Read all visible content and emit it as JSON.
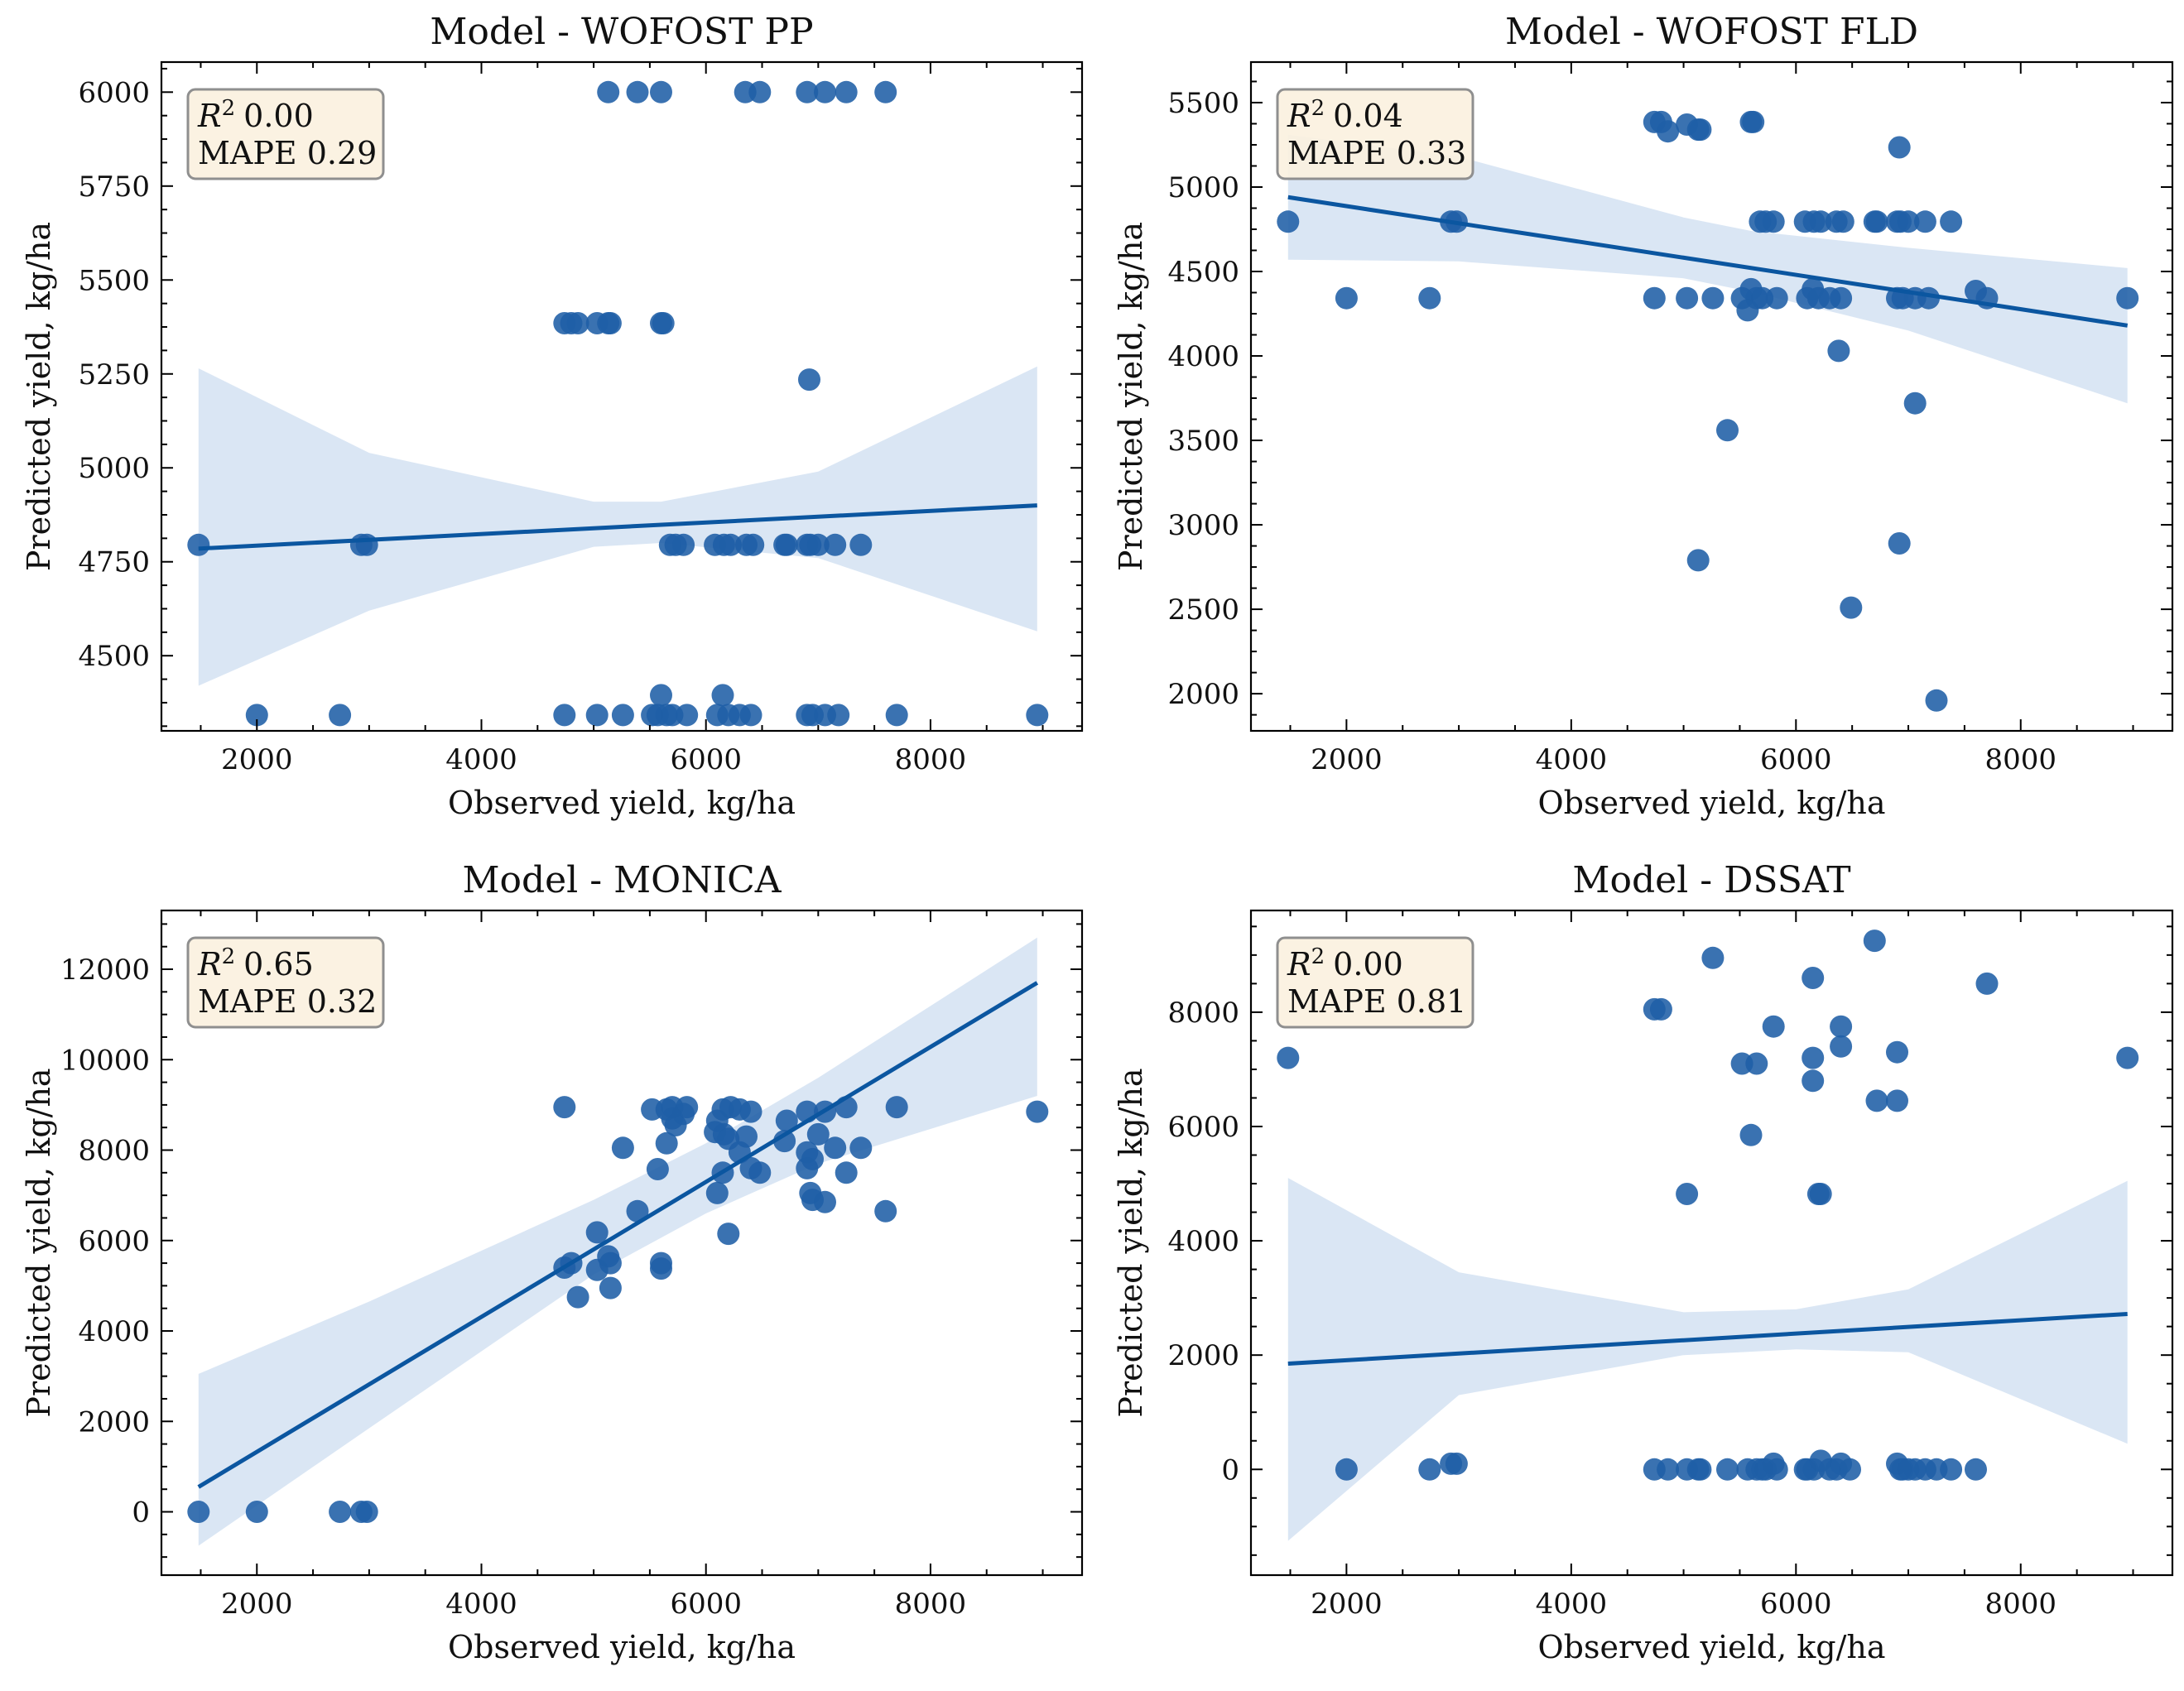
{
  "colors": {
    "point": "#1f5fa6",
    "line": "#0b56a0",
    "band": "#c6d9ee",
    "box_fill": "#fbf1df",
    "box_edge": "#8f8f8f"
  },
  "chart_data": [
    {
      "type": "scatter",
      "title": "Model - WOFOST PP",
      "xlabel": "Observed yield, kg/ha",
      "ylabel": "Predicted yield, kg/ha",
      "stats": {
        "r2_symbol": "R",
        "r2_exp": "2",
        "r2_value": "0.00",
        "mape": "MAPE 0.29"
      },
      "xlim": [
        1150,
        9350
      ],
      "ylim": [
        4300,
        6080
      ],
      "xticks": [
        2000,
        4000,
        6000,
        8000
      ],
      "xtick_labels": [
        "2000",
        "4000",
        "6000",
        "8000"
      ],
      "yticks": [
        4500,
        4750,
        5000,
        5250,
        5500,
        5750,
        6000
      ],
      "ytick_labels": [
        "4500",
        "4750",
        "5000",
        "5250",
        "5500",
        "5750",
        "6000"
      ],
      "fit": {
        "x": [
          1480,
          8950
        ],
        "y": [
          4785,
          4900
        ]
      },
      "band": {
        "x": [
          1480,
          3000,
          5000,
          5600,
          7000,
          8950
        ],
        "lower": [
          4420,
          4620,
          4790,
          4800,
          4760,
          4565
        ],
        "upper": [
          5265,
          5040,
          4910,
          4910,
          4990,
          5270
        ]
      },
      "points": [
        [
          1480,
          4795
        ],
        [
          2000,
          4342
        ],
        [
          2740,
          4342
        ],
        [
          2930,
          4795
        ],
        [
          2980,
          4795
        ],
        [
          4740,
          5385
        ],
        [
          4800,
          5385
        ],
        [
          4860,
          5385
        ],
        [
          5030,
          5385
        ],
        [
          5130,
          5385
        ],
        [
          5150,
          5385
        ],
        [
          5600,
          5385
        ],
        [
          5620,
          5385
        ],
        [
          4740,
          4342
        ],
        [
          5030,
          4342
        ],
        [
          5260,
          4342
        ],
        [
          5520,
          4342
        ],
        [
          5570,
          4342
        ],
        [
          5600,
          4395
        ],
        [
          5650,
          4342
        ],
        [
          5700,
          4342
        ],
        [
          5830,
          4342
        ],
        [
          6100,
          4342
        ],
        [
          6150,
          4395
        ],
        [
          6200,
          4342
        ],
        [
          6300,
          4342
        ],
        [
          6400,
          4342
        ],
        [
          6900,
          4342
        ],
        [
          6950,
          4342
        ],
        [
          7060,
          4342
        ],
        [
          7180,
          4342
        ],
        [
          7700,
          4342
        ],
        [
          8950,
          4342
        ],
        [
          5680,
          4795
        ],
        [
          5730,
          4795
        ],
        [
          5800,
          4795
        ],
        [
          6080,
          4795
        ],
        [
          6160,
          4795
        ],
        [
          6220,
          4795
        ],
        [
          6360,
          4795
        ],
        [
          6420,
          4795
        ],
        [
          6700,
          4795
        ],
        [
          6720,
          4795
        ],
        [
          6900,
          4795
        ],
        [
          6930,
          4795
        ],
        [
          7000,
          4795
        ],
        [
          7150,
          4795
        ],
        [
          7380,
          4795
        ],
        [
          6920,
          5235
        ],
        [
          5130,
          6000
        ],
        [
          5390,
          6000
        ],
        [
          5600,
          6000
        ],
        [
          6350,
          6000
        ],
        [
          6480,
          6000
        ],
        [
          6900,
          6000
        ],
        [
          7060,
          6000
        ],
        [
          7250,
          6000
        ],
        [
          7600,
          6000
        ]
      ]
    },
    {
      "type": "scatter",
      "title": "Model - WOFOST FLD",
      "xlabel": "Observed yield, kg/ha",
      "ylabel": "Predicted yield, kg/ha",
      "stats": {
        "r2_symbol": "R",
        "r2_exp": "2",
        "r2_value": "0.04",
        "mape": "MAPE 0.33"
      },
      "xlim": [
        1150,
        9350
      ],
      "ylim": [
        1780,
        5740
      ],
      "xticks": [
        2000,
        4000,
        6000,
        8000
      ],
      "xtick_labels": [
        "2000",
        "4000",
        "6000",
        "8000"
      ],
      "yticks": [
        2000,
        2500,
        3000,
        3500,
        4000,
        4500,
        5000,
        5500
      ],
      "ytick_labels": [
        "2000",
        "2500",
        "3000",
        "3500",
        "4000",
        "4500",
        "5000",
        "5500"
      ],
      "fit": {
        "x": [
          1480,
          8950
        ],
        "y": [
          4940,
          4180
        ]
      },
      "band": {
        "x": [
          1480,
          3000,
          5000,
          5600,
          7000,
          8950
        ],
        "lower": [
          4570,
          4560,
          4460,
          4380,
          4150,
          3720
        ],
        "upper": [
          5310,
          5180,
          4820,
          4740,
          4640,
          4520
        ]
      },
      "points": [
        [
          1480,
          4795
        ],
        [
          2000,
          4342
        ],
        [
          2740,
          4342
        ],
        [
          2930,
          4795
        ],
        [
          2980,
          4795
        ],
        [
          4740,
          5385
        ],
        [
          4800,
          5385
        ],
        [
          4860,
          5330
        ],
        [
          5030,
          5370
        ],
        [
          5130,
          5340
        ],
        [
          5150,
          5340
        ],
        [
          5600,
          5385
        ],
        [
          5620,
          5385
        ],
        [
          4740,
          4342
        ],
        [
          5030,
          4342
        ],
        [
          5260,
          4342
        ],
        [
          5520,
          4342
        ],
        [
          5570,
          4270
        ],
        [
          5600,
          4395
        ],
        [
          5650,
          4342
        ],
        [
          5700,
          4342
        ],
        [
          5830,
          4342
        ],
        [
          6100,
          4342
        ],
        [
          6150,
          4395
        ],
        [
          6200,
          4342
        ],
        [
          6300,
          4342
        ],
        [
          6400,
          4342
        ],
        [
          6900,
          4342
        ],
        [
          6950,
          4342
        ],
        [
          7060,
          4342
        ],
        [
          7180,
          4342
        ],
        [
          7700,
          4342
        ],
        [
          8950,
          4342
        ],
        [
          5680,
          4795
        ],
        [
          5730,
          4795
        ],
        [
          5800,
          4795
        ],
        [
          6080,
          4795
        ],
        [
          6160,
          4795
        ],
        [
          6220,
          4795
        ],
        [
          6360,
          4795
        ],
        [
          6420,
          4795
        ],
        [
          6700,
          4795
        ],
        [
          6720,
          4795
        ],
        [
          6900,
          4795
        ],
        [
          6930,
          4795
        ],
        [
          7000,
          4795
        ],
        [
          7150,
          4795
        ],
        [
          7380,
          4795
        ],
        [
          6920,
          5235
        ],
        [
          6380,
          4030
        ],
        [
          5390,
          3560
        ],
        [
          5130,
          2790
        ],
        [
          6920,
          2890
        ],
        [
          6490,
          2510
        ],
        [
          7250,
          1960
        ],
        [
          7060,
          3720
        ],
        [
          7600,
          4385
        ]
      ]
    },
    {
      "type": "scatter",
      "title": "Model - MONICA",
      "xlabel": "Observed yield, kg/ha",
      "ylabel": "Predicted yield, kg/ha",
      "stats": {
        "r2_symbol": "R",
        "r2_exp": "2",
        "r2_value": "0.65",
        "mape": "MAPE 0.32"
      },
      "xlim": [
        1150,
        9350
      ],
      "ylim": [
        -1400,
        13300
      ],
      "xticks": [
        2000,
        4000,
        6000,
        8000
      ],
      "xtick_labels": [
        "2000",
        "4000",
        "6000",
        "8000"
      ],
      "yticks": [
        0,
        2000,
        4000,
        6000,
        8000,
        10000,
        12000
      ],
      "ytick_labels": [
        "0",
        "2000",
        "4000",
        "6000",
        "8000",
        "10000",
        "12000"
      ],
      "fit": {
        "x": [
          1480,
          8950
        ],
        "y": [
          550,
          11700
        ]
      },
      "band": {
        "x": [
          1480,
          3000,
          5000,
          6000,
          7000,
          8950
        ],
        "lower": [
          -750,
          1850,
          5250,
          6600,
          7700,
          9200
        ],
        "upper": [
          3050,
          4650,
          6900,
          8150,
          9600,
          12700
        ]
      },
      "points": [
        [
          1480,
          0
        ],
        [
          2000,
          0
        ],
        [
          2740,
          0
        ],
        [
          2930,
          0
        ],
        [
          2980,
          0
        ],
        [
          4740,
          8950
        ],
        [
          4740,
          5400
        ],
        [
          4800,
          5500
        ],
        [
          4860,
          4750
        ],
        [
          5030,
          5350
        ],
        [
          5030,
          6180
        ],
        [
          5130,
          5650
        ],
        [
          5150,
          5500
        ],
        [
          5150,
          4950
        ],
        [
          5260,
          8050
        ],
        [
          5390,
          6650
        ],
        [
          5520,
          8900
        ],
        [
          5570,
          7580
        ],
        [
          5600,
          5380
        ],
        [
          5600,
          5500
        ],
        [
          5650,
          8900
        ],
        [
          5650,
          8150
        ],
        [
          5700,
          8700
        ],
        [
          5700,
          8950
        ],
        [
          5730,
          8550
        ],
        [
          5800,
          8800
        ],
        [
          5830,
          8950
        ],
        [
          6080,
          8400
        ],
        [
          6100,
          8650
        ],
        [
          6100,
          7050
        ],
        [
          6150,
          7500
        ],
        [
          6150,
          8900
        ],
        [
          6160,
          8350
        ],
        [
          6200,
          8250
        ],
        [
          6200,
          6150
        ],
        [
          6220,
          8950
        ],
        [
          6300,
          7950
        ],
        [
          6300,
          8900
        ],
        [
          6360,
          8300
        ],
        [
          6400,
          7600
        ],
        [
          6400,
          8850
        ],
        [
          6480,
          7500
        ],
        [
          6700,
          8200
        ],
        [
          6720,
          8650
        ],
        [
          6900,
          8850
        ],
        [
          6900,
          7600
        ],
        [
          6900,
          7950
        ],
        [
          6930,
          7050
        ],
        [
          6950,
          7800
        ],
        [
          6950,
          6900
        ],
        [
          7000,
          8350
        ],
        [
          7060,
          6850
        ],
        [
          7060,
          8850
        ],
        [
          7150,
          8050
        ],
        [
          7250,
          8950
        ],
        [
          7250,
          7500
        ],
        [
          7380,
          8050
        ],
        [
          7600,
          6650
        ],
        [
          7700,
          8950
        ],
        [
          8950,
          8850
        ]
      ]
    },
    {
      "type": "scatter",
      "title": "Model - DSSAT",
      "xlabel": "Observed yield, kg/ha",
      "ylabel": "Predicted yield, kg/ha",
      "stats": {
        "r2_symbol": "R",
        "r2_exp": "2",
        "r2_value": "0.00",
        "mape": "MAPE 0.81"
      },
      "xlim": [
        1150,
        9350
      ],
      "ylim": [
        -1850,
        9780
      ],
      "xticks": [
        2000,
        4000,
        6000,
        8000
      ],
      "xtick_labels": [
        "2000",
        "4000",
        "6000",
        "8000"
      ],
      "yticks": [
        0,
        2000,
        4000,
        6000,
        8000
      ],
      "ytick_labels": [
        "0",
        "2000",
        "4000",
        "6000",
        "8000"
      ],
      "fit": {
        "x": [
          1480,
          8950
        ],
        "y": [
          1850,
          2720
        ]
      },
      "band": {
        "x": [
          1480,
          3000,
          5000,
          6000,
          7000,
          8950
        ],
        "lower": [
          -1250,
          1300,
          2000,
          2100,
          2050,
          450
        ],
        "upper": [
          5100,
          3450,
          2750,
          2800,
          3150,
          5050
        ]
      },
      "points": [
        [
          1480,
          7200
        ],
        [
          2000,
          0
        ],
        [
          2740,
          0
        ],
        [
          2930,
          100
        ],
        [
          2980,
          100
        ],
        [
          4740,
          8050
        ],
        [
          4800,
          8050
        ],
        [
          4740,
          0
        ],
        [
          4860,
          0
        ],
        [
          5030,
          4820
        ],
        [
          5030,
          0
        ],
        [
          5130,
          0
        ],
        [
          5150,
          0
        ],
        [
          5260,
          8950
        ],
        [
          5390,
          0
        ],
        [
          5520,
          7100
        ],
        [
          5570,
          0
        ],
        [
          5600,
          5850
        ],
        [
          5650,
          7100
        ],
        [
          5650,
          0
        ],
        [
          5700,
          0
        ],
        [
          5730,
          0
        ],
        [
          5800,
          7750
        ],
        [
          5800,
          100
        ],
        [
          5830,
          0
        ],
        [
          6080,
          0
        ],
        [
          6100,
          0
        ],
        [
          6150,
          8600
        ],
        [
          6150,
          6800
        ],
        [
          6150,
          7200
        ],
        [
          6160,
          0
        ],
        [
          6200,
          4820
        ],
        [
          6220,
          4820
        ],
        [
          6220,
          150
        ],
        [
          6300,
          0
        ],
        [
          6360,
          0
        ],
        [
          6400,
          7400
        ],
        [
          6400,
          7750
        ],
        [
          6400,
          100
        ],
        [
          6480,
          0
        ],
        [
          6700,
          9250
        ],
        [
          6720,
          6450
        ],
        [
          6900,
          6450
        ],
        [
          6900,
          7300
        ],
        [
          6900,
          100
        ],
        [
          6930,
          0
        ],
        [
          6950,
          0
        ],
        [
          7000,
          0
        ],
        [
          7060,
          0
        ],
        [
          7150,
          0
        ],
        [
          7250,
          0
        ],
        [
          7380,
          0
        ],
        [
          7600,
          0
        ],
        [
          7700,
          8500
        ],
        [
          8950,
          7200
        ]
      ]
    }
  ]
}
